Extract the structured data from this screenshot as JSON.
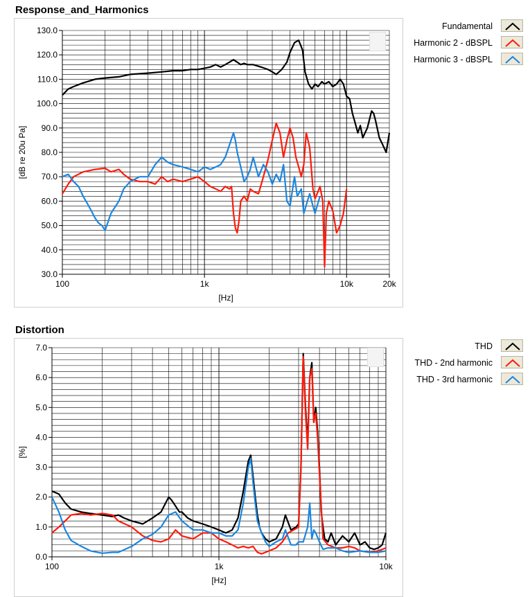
{
  "colors": {
    "fundamental": "#000000",
    "harmonic2": "#ff1a0a",
    "harmonic3": "#1a86e0",
    "grid": "#000000"
  },
  "chart_data": [
    {
      "type": "line",
      "title": "Response_and_Harmonics",
      "xlabel": "[Hz]",
      "ylabel": "[dB re 20u Pa]",
      "xscale": "log",
      "xlim": [
        100,
        20000
      ],
      "ylim": [
        30,
        130
      ],
      "xticks": [
        {
          "value": 100,
          "label": "100"
        },
        {
          "value": 1000,
          "label": "1k"
        },
        {
          "value": 10000,
          "label": "10k"
        },
        {
          "value": 20000,
          "label": "20k"
        }
      ],
      "yticks": [
        {
          "value": 30,
          "label": "30.0"
        },
        {
          "value": 40,
          "label": "40.0"
        },
        {
          "value": 50,
          "label": "50.0"
        },
        {
          "value": 60,
          "label": "60.0"
        },
        {
          "value": 70,
          "label": "70.0"
        },
        {
          "value": 80,
          "label": "80.0"
        },
        {
          "value": 90,
          "label": "90.0"
        },
        {
          "value": 100,
          "label": "100.0"
        },
        {
          "value": 110,
          "label": "110.0"
        },
        {
          "value": 120,
          "label": "120.0"
        },
        {
          "value": 130,
          "label": "130.0"
        }
      ],
      "ygrid_step": 2,
      "grid": true,
      "legend_position": "right",
      "series": [
        {
          "name": "Fundamental",
          "color": "#000000",
          "x": [
            100,
            110,
            120,
            140,
            170,
            200,
            250,
            300,
            400,
            500,
            600,
            700,
            800,
            900,
            1000,
            1100,
            1200,
            1300,
            1400,
            1500,
            1600,
            1700,
            1800,
            1900,
            2000,
            2200,
            2500,
            2800,
            3000,
            3200,
            3500,
            3800,
            4000,
            4300,
            4600,
            4900,
            5100,
            5400,
            5700,
            6000,
            6300,
            6700,
            7000,
            7500,
            8000,
            8500,
            9000,
            9500,
            10000,
            10500,
            11000,
            11500,
            12000,
            12500,
            13000,
            14000,
            15000,
            15500,
            16000,
            17000,
            18000,
            19000,
            20000
          ],
          "y": [
            103.5,
            106,
            107,
            108.5,
            110,
            110.5,
            111,
            112,
            112.5,
            113,
            113.5,
            113.5,
            114,
            114,
            114.5,
            115,
            116,
            115,
            116,
            117,
            118,
            117,
            116,
            116.5,
            116,
            116,
            115,
            114,
            113,
            112,
            114,
            117,
            121,
            125,
            126,
            122,
            113,
            108,
            106,
            108,
            107,
            109,
            108,
            109,
            107,
            108,
            110,
            108,
            103,
            102,
            96,
            92,
            88,
            91,
            86,
            90,
            97,
            96,
            93,
            86,
            83,
            80,
            88
          ]
        },
        {
          "name": "Harmonic 2 - dBSPL",
          "color": "#ff1a0a",
          "x": [
            100,
            110,
            120,
            140,
            170,
            200,
            220,
            250,
            270,
            300,
            350,
            400,
            450,
            500,
            550,
            600,
            700,
            800,
            900,
            1000,
            1100,
            1200,
            1300,
            1400,
            1500,
            1550,
            1600,
            1650,
            1700,
            1750,
            1800,
            1900,
            2000,
            2100,
            2200,
            2400,
            2600,
            2800,
            3000,
            3200,
            3400,
            3600,
            3800,
            4000,
            4200,
            4400,
            4600,
            4800,
            5000,
            5200,
            5500,
            5800,
            6000,
            6200,
            6500,
            6800,
            7000,
            7200,
            7500,
            8000,
            8500,
            9000,
            9500,
            10000
          ],
          "y": [
            63,
            67,
            70,
            72,
            73,
            73.5,
            72,
            73,
            71,
            69,
            68,
            68,
            67,
            70,
            68,
            69,
            68,
            69,
            70,
            68,
            66,
            65,
            64,
            66,
            65,
            66,
            55,
            49,
            47,
            52,
            60,
            62,
            60,
            65,
            64,
            63,
            70,
            77,
            85,
            92,
            88,
            78,
            85,
            90,
            86,
            78,
            74,
            70,
            75,
            88,
            82,
            65,
            61,
            63,
            66,
            60,
            33,
            55,
            60,
            56,
            47,
            50,
            55,
            65
          ]
        },
        {
          "name": "Harmonic 3 - dBSPL",
          "color": "#1a86e0",
          "x": [
            100,
            110,
            120,
            130,
            140,
            150,
            160,
            170,
            180,
            190,
            200,
            220,
            250,
            270,
            300,
            350,
            400,
            450,
            500,
            550,
            600,
            700,
            800,
            900,
            1000,
            1100,
            1200,
            1300,
            1400,
            1500,
            1600,
            1650,
            1700,
            1800,
            1900,
            2000,
            2100,
            2200,
            2400,
            2600,
            2800,
            3000,
            3200,
            3400,
            3600,
            3800,
            4000,
            4300,
            4500,
            4800,
            5000,
            5300,
            5500,
            5800,
            6000,
            6200,
            6500
          ],
          "y": [
            70,
            71,
            68,
            66,
            62,
            59,
            56,
            53,
            51,
            50,
            48,
            55,
            60,
            65,
            68,
            70,
            70,
            75,
            78,
            76,
            75,
            74,
            73,
            72,
            74,
            73,
            74,
            75,
            78,
            83,
            88,
            85,
            80,
            74,
            68,
            70,
            73,
            78,
            70,
            75,
            72,
            67,
            71,
            68,
            75,
            60,
            58,
            70,
            62,
            65,
            55,
            60,
            63,
            58,
            55,
            58,
            62
          ]
        }
      ]
    },
    {
      "type": "line",
      "title": "Distortion",
      "xlabel": "[Hz]",
      "ylabel": "[%]",
      "xscale": "log",
      "xlim": [
        100,
        10000
      ],
      "ylim": [
        0,
        7
      ],
      "xticks": [
        {
          "value": 100,
          "label": "100"
        },
        {
          "value": 1000,
          "label": "1k"
        },
        {
          "value": 10000,
          "label": "10k"
        }
      ],
      "yticks": [
        {
          "value": 0,
          "label": "0.0"
        },
        {
          "value": 1,
          "label": "1.0"
        },
        {
          "value": 2,
          "label": "2.0"
        },
        {
          "value": 3,
          "label": "3.0"
        },
        {
          "value": 4,
          "label": "4.0"
        },
        {
          "value": 5,
          "label": "5.0"
        },
        {
          "value": 6,
          "label": "6.0"
        },
        {
          "value": 7,
          "label": "7.0"
        }
      ],
      "ygrid_step": 0.2,
      "grid": true,
      "legend_position": "right",
      "series": [
        {
          "name": "THD",
          "color": "#000000",
          "x": [
            100,
            110,
            120,
            130,
            150,
            170,
            200,
            230,
            250,
            270,
            300,
            350,
            400,
            450,
            500,
            520,
            550,
            580,
            600,
            650,
            700,
            800,
            900,
            1000,
            1100,
            1200,
            1300,
            1400,
            1500,
            1550,
            1600,
            1650,
            1700,
            1750,
            1800,
            1900,
            2000,
            2200,
            2400,
            2500,
            2700,
            2900,
            3000,
            3100,
            3200,
            3300,
            3400,
            3500,
            3600,
            3700,
            3800,
            3900,
            4000,
            4100,
            4200,
            4300,
            4500,
            4700,
            5000,
            5500,
            6000,
            6500,
            7000,
            7500,
            8000,
            8500,
            9000,
            9500,
            10000
          ],
          "y": [
            2.2,
            2.1,
            1.8,
            1.6,
            1.5,
            1.45,
            1.4,
            1.35,
            1.4,
            1.3,
            1.2,
            1.1,
            1.3,
            1.5,
            2.0,
            1.9,
            1.7,
            1.5,
            1.5,
            1.3,
            1.2,
            1.1,
            1.0,
            0.9,
            0.8,
            0.9,
            1.3,
            2.2,
            3.2,
            3.4,
            2.7,
            2.0,
            1.4,
            1.0,
            0.8,
            0.6,
            0.5,
            0.6,
            1.0,
            1.4,
            0.9,
            1.0,
            1.1,
            3.0,
            6.8,
            5.0,
            3.8,
            6.0,
            6.5,
            4.5,
            5.0,
            4.2,
            3.0,
            1.5,
            1.0,
            0.6,
            0.5,
            0.8,
            0.4,
            0.7,
            0.5,
            0.8,
            0.4,
            0.5,
            0.3,
            0.25,
            0.3,
            0.4,
            0.8
          ]
        },
        {
          "name": "THD - 2nd harmonic",
          "color": "#ff1a0a",
          "x": [
            100,
            110,
            120,
            130,
            150,
            170,
            200,
            230,
            250,
            300,
            350,
            400,
            450,
            500,
            550,
            600,
            700,
            800,
            900,
            1000,
            1100,
            1200,
            1300,
            1400,
            1500,
            1600,
            1700,
            1800,
            1900,
            2000,
            2200,
            2400,
            2600,
            2800,
            3000,
            3100,
            3200,
            3300,
            3400,
            3500,
            3600,
            3700,
            3800,
            3900,
            4000,
            4200,
            4500,
            5000,
            5500,
            6000,
            6500,
            7000,
            8000,
            9000,
            10000
          ],
          "y": [
            0.8,
            1.0,
            1.2,
            1.4,
            1.45,
            1.4,
            1.45,
            1.4,
            1.2,
            1.0,
            0.7,
            0.55,
            0.5,
            0.6,
            0.9,
            0.7,
            0.6,
            0.8,
            0.8,
            0.6,
            0.5,
            0.4,
            0.3,
            0.35,
            0.3,
            0.35,
            0.15,
            0.1,
            0.15,
            0.2,
            0.3,
            0.5,
            0.8,
            0.9,
            1.0,
            3.0,
            6.7,
            4.8,
            3.6,
            6.0,
            6.3,
            4.5,
            4.8,
            4.0,
            2.8,
            0.6,
            0.4,
            0.3,
            0.3,
            0.35,
            0.3,
            0.2,
            0.15,
            0.2,
            0.3
          ]
        },
        {
          "name": "THD - 3rd harmonic",
          "color": "#1a86e0",
          "x": [
            100,
            110,
            120,
            130,
            150,
            170,
            200,
            230,
            250,
            300,
            350,
            400,
            450,
            500,
            550,
            600,
            700,
            800,
            900,
            1000,
            1100,
            1200,
            1300,
            1400,
            1500,
            1550,
            1600,
            1650,
            1700,
            1800,
            1900,
            2000,
            2200,
            2400,
            2500,
            2700,
            2900,
            3000,
            3200,
            3400,
            3500,
            3600,
            3700,
            3800,
            4000,
            4200,
            4500,
            5000,
            5500,
            6000,
            7000,
            8000,
            9000,
            10000
          ],
          "y": [
            2.0,
            1.5,
            0.9,
            0.55,
            0.35,
            0.2,
            0.12,
            0.15,
            0.15,
            0.35,
            0.6,
            0.75,
            1.0,
            1.4,
            1.5,
            1.2,
            0.9,
            0.9,
            0.8,
            0.8,
            0.7,
            0.7,
            0.9,
            1.8,
            3.0,
            3.3,
            2.5,
            1.8,
            1.2,
            0.8,
            0.5,
            0.35,
            0.5,
            0.6,
            0.9,
            0.4,
            0.4,
            0.5,
            0.5,
            1.0,
            1.8,
            0.6,
            0.9,
            0.8,
            0.5,
            0.25,
            0.3,
            0.3,
            0.2,
            0.15,
            0.2,
            0.15,
            0.15,
            0.2
          ]
        }
      ]
    }
  ]
}
